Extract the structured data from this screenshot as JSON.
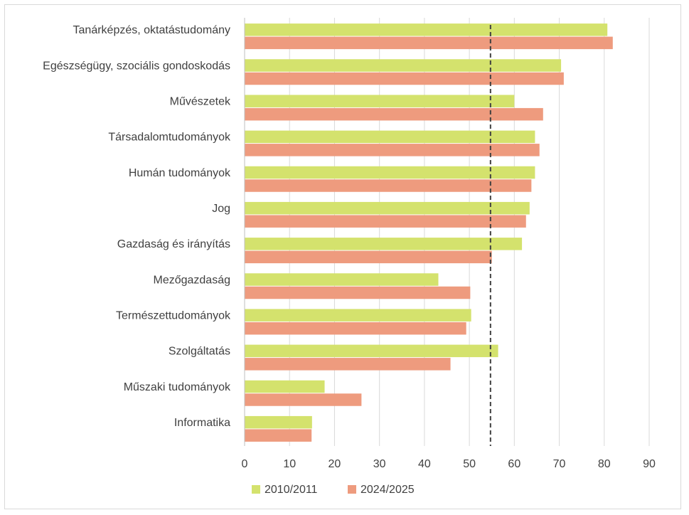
{
  "chart_data": {
    "type": "bar",
    "orientation": "horizontal",
    "title": "",
    "xlabel": "",
    "ylabel": "",
    "categories": [
      "Tanárképzés, oktatástudomány",
      "Egészségügy, szociális gondoskodás",
      "Művészetek",
      "Társadalomtudományok",
      "Humán tudományok",
      "Jog",
      "Gazdaság és irányítás",
      "Mezőgazdaság",
      "Természettudományok",
      "Szolgáltatás",
      "Műszaki tudományok",
      "Informatika"
    ],
    "series": [
      {
        "name": "2010/2011",
        "color": "#d4e26d",
        "values": [
          80.7,
          70.4,
          60.0,
          64.6,
          64.6,
          63.4,
          61.7,
          43.1,
          50.4,
          56.4,
          17.8,
          15.0
        ]
      },
      {
        "name": "2024/2025",
        "color": "#ee9b7e",
        "values": [
          81.9,
          71.0,
          66.4,
          65.6,
          63.8,
          62.6,
          55.0,
          50.2,
          49.3,
          45.8,
          26.0,
          14.9
        ]
      }
    ],
    "reference_line": {
      "value": 54.7,
      "style": "dashed",
      "color": "#404040"
    },
    "xlim": [
      0,
      90
    ],
    "xticks": [
      "0",
      "10",
      "20",
      "30",
      "40",
      "50",
      "60",
      "70",
      "80",
      "90"
    ],
    "grid": true,
    "legend_position": "bottom"
  }
}
